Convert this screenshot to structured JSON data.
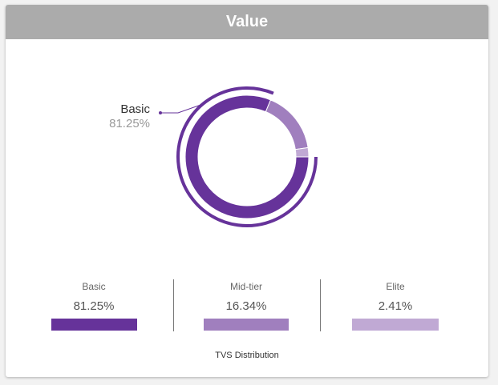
{
  "header": {
    "title": "Value"
  },
  "colors": {
    "basic": "#66339a",
    "mid_tier": "#a07fbe",
    "elite": "#c0a9d4",
    "header_bg": "#ababab"
  },
  "callout": {
    "label": "Basic",
    "value": "81.25%"
  },
  "legend": [
    {
      "label": "Basic",
      "value": "81.25%",
      "color": "#66339a"
    },
    {
      "label": "Mid-tier",
      "value": "16.34%",
      "color": "#a07fbe"
    },
    {
      "label": "Elite",
      "value": "2.41%",
      "color": "#c0a9d4"
    }
  ],
  "caption": "TVS Distribution",
  "chart_data": {
    "type": "pie",
    "categories": [
      "Basic",
      "Mid-tier",
      "Elite"
    ],
    "values": [
      81.25,
      16.34,
      2.41
    ],
    "title": "",
    "highlighted": "Basic",
    "legend_position": "bottom"
  }
}
